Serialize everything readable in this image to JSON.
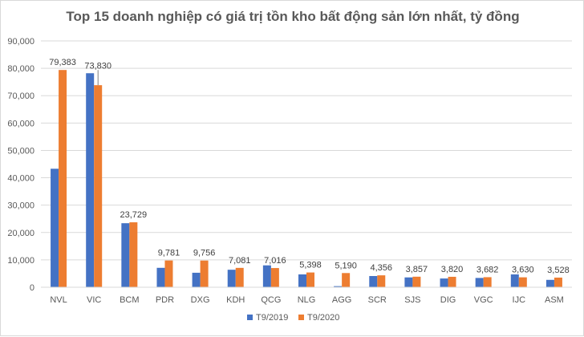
{
  "chart_data": {
    "type": "bar",
    "title": "Top 15 doanh nghiệp có giá trị tồn kho bất động sản lớn nhất, tỷ đồng",
    "categories": [
      "NVL",
      "VIC",
      "BCM",
      "PDR",
      "DXG",
      "KDH",
      "QCG",
      "NLG",
      "AGG",
      "SCR",
      "SJS",
      "DIG",
      "VGC",
      "IJC",
      "ASM"
    ],
    "series": [
      {
        "name": "T9/2019",
        "color": "#4472C4",
        "values": [
          43300,
          78200,
          23400,
          7100,
          5300,
          6400,
          8000,
          4700,
          400,
          4100,
          3600,
          3200,
          3400,
          4700,
          2700
        ]
      },
      {
        "name": "T9/2020",
        "color": "#ED7D31",
        "values": [
          79383,
          73830,
          23729,
          9781,
          9756,
          7081,
          7016,
          5398,
          5190,
          4356,
          3857,
          3820,
          3682,
          3630,
          3528
        ]
      }
    ],
    "data_labels": [
      "79,383",
      "73,830",
      "23,729",
      "9,781",
      "9,756",
      "7,081",
      "7,016",
      "5,398",
      "5,190",
      "4,356",
      "3,857",
      "3,820",
      "3,682",
      "3,630",
      "3,528"
    ],
    "ylim": [
      0,
      90000
    ],
    "yticks": [
      "0",
      "10,000",
      "20,000",
      "30,000",
      "40,000",
      "50,000",
      "60,000",
      "70,000",
      "80,000",
      "90,000"
    ],
    "grid": true,
    "legend_position": "bottom-center",
    "xlabel": "",
    "ylabel": ""
  }
}
